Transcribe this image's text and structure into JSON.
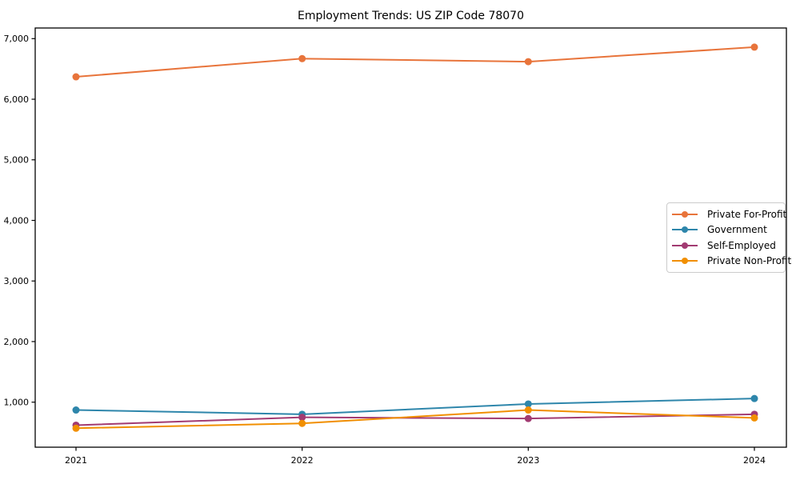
{
  "title": "Employment Trends: US ZIP Code 78070",
  "chart_data": {
    "type": "line",
    "categories": [
      "2021",
      "2022",
      "2023",
      "2024"
    ],
    "series": [
      {
        "name": "Private For-Profit",
        "color": "#E8743B",
        "values": [
          6370,
          6670,
          6620,
          6860
        ]
      },
      {
        "name": "Government",
        "color": "#2E86AB",
        "values": [
          870,
          800,
          970,
          1060
        ]
      },
      {
        "name": "Self-Employed",
        "color": "#A23B72",
        "values": [
          620,
          750,
          730,
          800
        ]
      },
      {
        "name": "Private Non-Profit",
        "color": "#F18F01",
        "values": [
          570,
          650,
          870,
          740
        ]
      }
    ],
    "yticks": [
      1000,
      2000,
      3000,
      4000,
      5000,
      6000,
      7000
    ],
    "ytick_labels": [
      "1,000",
      "2,000",
      "3,000",
      "4,000",
      "5,000",
      "6,000",
      "7,000"
    ],
    "ylim": [
      250,
      7180
    ],
    "xlabel": "",
    "ylabel": "",
    "grid": false,
    "legend_position": "center right",
    "marker": "circle",
    "spine_color": "#000000"
  }
}
